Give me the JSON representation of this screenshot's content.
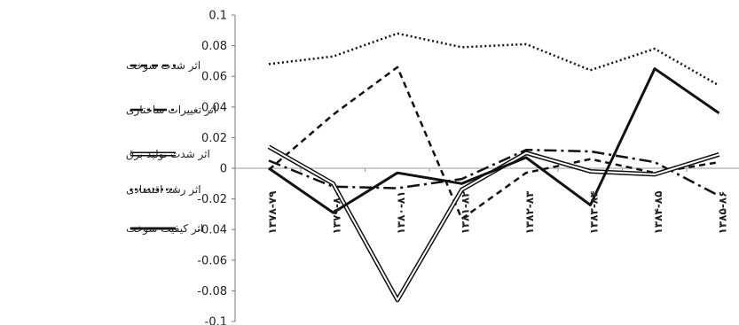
{
  "chart_data": {
    "type": "line",
    "title": "",
    "xlabel": "",
    "ylabel": "",
    "ylim": [
      -0.1,
      0.1
    ],
    "yticks": [
      "0.1",
      "0.08",
      "0.06",
      "0.04",
      "0.02",
      "0",
      "-0.02",
      "-0.04",
      "-0.06",
      "-0.08",
      "-0.1"
    ],
    "categories": [
      "۱۳۷۸-۷۹",
      "۱۳۷۹-۸۰",
      "۱۳۸۰-۸۱",
      "۱۳۸۱-۸۲",
      "۱۳۸۲-۸۳",
      "۱۳۸۳-۸۴",
      "۱۳۸۴-۸۵",
      "۱۳۸۵-۸۶"
    ],
    "legend_position": "left",
    "grid": false,
    "series": [
      {
        "name": "اثر شدت سوخت",
        "style": "dashed",
        "color": "#111111",
        "values": [
          -0.001,
          0.035,
          0.066,
          -0.033,
          -0.003,
          0.006,
          -0.003,
          0.004
        ]
      },
      {
        "name": "اثر تغییرات ساختاری",
        "style": "dash-dot",
        "color": "#111111",
        "values": [
          0.005,
          -0.012,
          -0.013,
          -0.007,
          0.012,
          0.011,
          0.004,
          -0.018
        ]
      },
      {
        "name": "اثر شدت تولید برق",
        "style": "double",
        "color": "#111111",
        "values": [
          0.014,
          -0.01,
          -0.086,
          -0.014,
          0.01,
          -0.002,
          -0.004,
          0.009
        ]
      },
      {
        "name": "اثر رشد اقتصادی",
        "style": "dotted",
        "color": "#111111",
        "values": [
          0.068,
          0.073,
          0.088,
          0.079,
          0.081,
          0.064,
          0.078,
          0.054
        ]
      },
      {
        "name": "اثر کیفیت سوخت",
        "style": "solid",
        "color": "#111111",
        "values": [
          0.0,
          -0.029,
          -0.003,
          -0.01,
          0.007,
          -0.024,
          0.065,
          0.036
        ]
      }
    ]
  }
}
